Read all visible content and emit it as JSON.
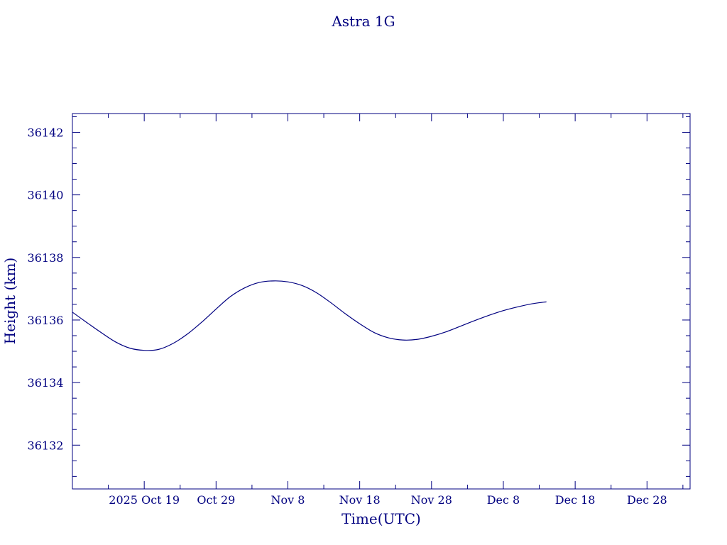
{
  "chart_data": {
    "type": "line",
    "title": "Astra 1G",
    "xlabel": "Time(UTC)",
    "ylabel": "Height (km)",
    "xlim": [
      "2025-10-09",
      "2026-01-03"
    ],
    "ylim": [
      36130.6,
      36142.6
    ],
    "x_ticks": [
      {
        "date": "2025-10-19",
        "label": "2025 Oct 19"
      },
      {
        "date": "2025-10-29",
        "label": "Oct 29"
      },
      {
        "date": "2025-11-08",
        "label": "Nov  8"
      },
      {
        "date": "2025-11-18",
        "label": "Nov 18"
      },
      {
        "date": "2025-11-28",
        "label": "Nov 28"
      },
      {
        "date": "2025-12-08",
        "label": "Dec  8"
      },
      {
        "date": "2025-12-18",
        "label": "Dec 18"
      },
      {
        "date": "2025-12-28",
        "label": "Dec 28"
      }
    ],
    "x_minor_step_days": 5,
    "y_ticks": [
      36132,
      36134,
      36136,
      36138,
      36140,
      36142
    ],
    "y_minor_step": 0.5,
    "grid": false,
    "legend": "none",
    "colors": {
      "foreground": "#000080",
      "background": "#ffffff"
    },
    "series": [
      {
        "x": [
          "2025-10-09",
          "2025-10-11",
          "2025-10-13",
          "2025-10-15",
          "2025-10-17",
          "2025-10-19",
          "2025-10-21",
          "2025-10-23",
          "2025-10-25",
          "2025-10-27",
          "2025-10-29",
          "2025-10-31",
          "2025-11-02",
          "2025-11-04",
          "2025-11-06",
          "2025-11-08",
          "2025-11-10",
          "2025-11-12",
          "2025-11-14",
          "2025-11-16",
          "2025-11-18",
          "2025-11-20",
          "2025-11-22",
          "2025-11-24",
          "2025-11-26",
          "2025-11-28",
          "2025-11-30",
          "2025-12-02",
          "2025-12-04",
          "2025-12-06",
          "2025-12-08",
          "2025-12-10",
          "2025-12-12",
          "2025-12-14"
        ],
        "values": [
          36136.25,
          36135.92,
          36135.6,
          36135.3,
          36135.1,
          36135.03,
          36135.06,
          36135.25,
          36135.55,
          36135.93,
          36136.35,
          36136.75,
          36137.03,
          36137.2,
          36137.25,
          36137.22,
          36137.1,
          36136.87,
          36136.55,
          36136.2,
          36135.88,
          36135.6,
          36135.43,
          36135.36,
          36135.38,
          36135.48,
          36135.62,
          36135.8,
          36135.98,
          36136.15,
          36136.3,
          36136.42,
          36136.52,
          36136.58
        ]
      }
    ]
  }
}
